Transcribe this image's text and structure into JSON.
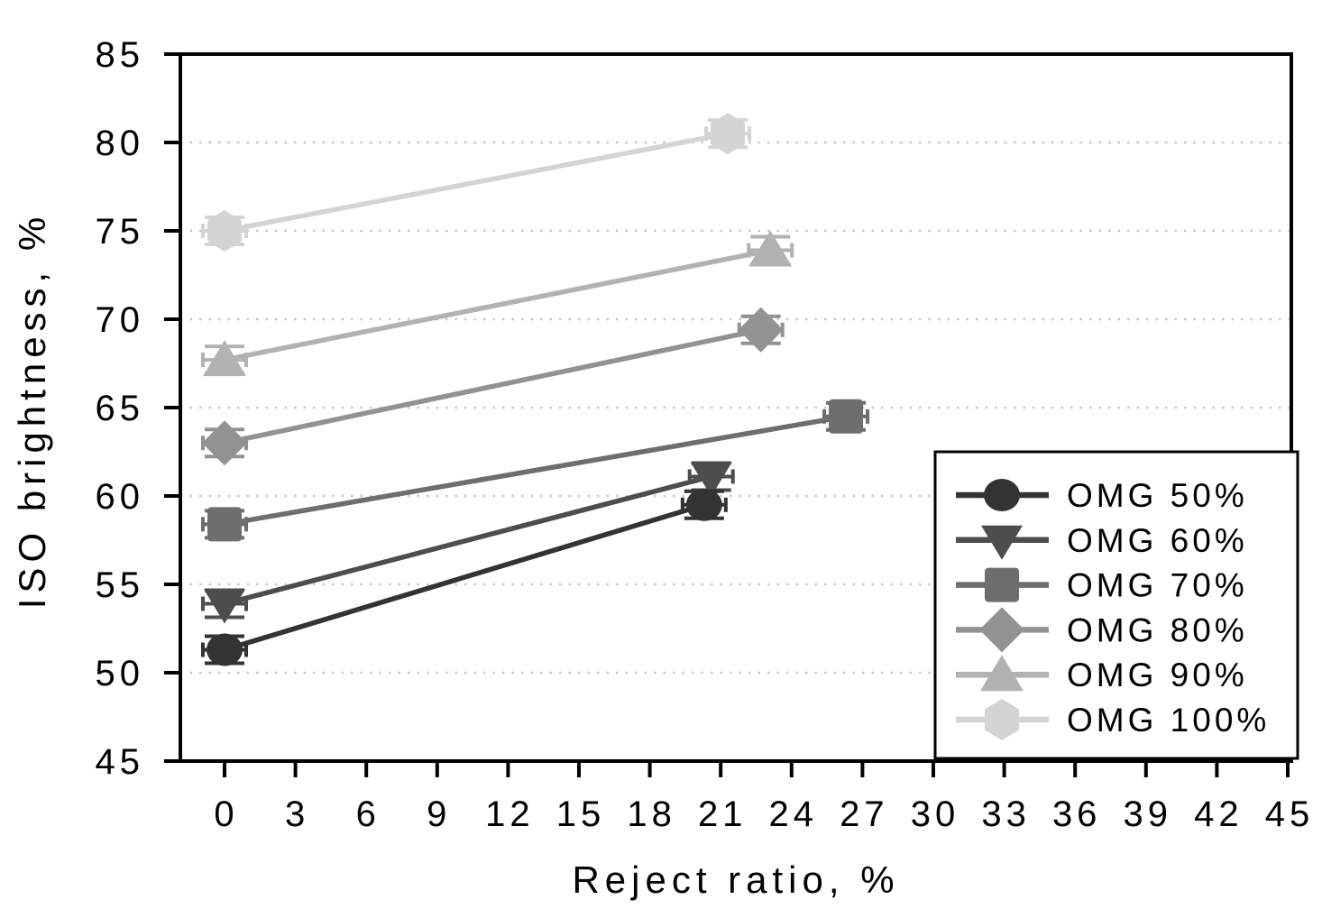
{
  "chart_data": {
    "type": "line",
    "title": "",
    "xlabel": "Reject ratio, %",
    "ylabel": "ISO brightness, %",
    "xlim": [
      -1.9,
      45.2
    ],
    "ylim": [
      45,
      85
    ],
    "xticks": [
      0,
      3,
      6,
      9,
      12,
      15,
      18,
      21,
      24,
      27,
      30,
      33,
      36,
      39,
      42,
      45
    ],
    "yticks": [
      45,
      50,
      55,
      60,
      65,
      70,
      75,
      80,
      85
    ],
    "grid": "horizontal-dotted",
    "gridline_color": "#c8c8c8",
    "frame_color": "#000000",
    "legend_position": "lower-right-box",
    "error_bars": true,
    "series": [
      {
        "name": "OMG 50%",
        "marker": "circle",
        "color": "#333333",
        "points": [
          [
            0,
            51.3
          ],
          [
            20.3,
            59.5
          ]
        ]
      },
      {
        "name": "OMG 60%",
        "marker": "triangle-down",
        "color": "#4d4d4d",
        "points": [
          [
            0,
            53.9
          ],
          [
            20.6,
            61.1
          ]
        ]
      },
      {
        "name": "OMG 70%",
        "marker": "square",
        "color": "#6e6e6e",
        "points": [
          [
            0,
            58.4
          ],
          [
            26.3,
            64.5
          ]
        ]
      },
      {
        "name": "OMG 80%",
        "marker": "diamond",
        "color": "#929292",
        "points": [
          [
            0,
            63.0
          ],
          [
            22.7,
            69.4
          ]
        ]
      },
      {
        "name": "OMG 90%",
        "marker": "triangle-up",
        "color": "#b2b2b2",
        "points": [
          [
            0,
            67.7
          ],
          [
            23.1,
            73.9
          ]
        ]
      },
      {
        "name": "OMG 100%",
        "marker": "hexagon",
        "color": "#d4d4d4",
        "points": [
          [
            0,
            75.0
          ],
          [
            21.3,
            80.5
          ]
        ]
      }
    ]
  }
}
